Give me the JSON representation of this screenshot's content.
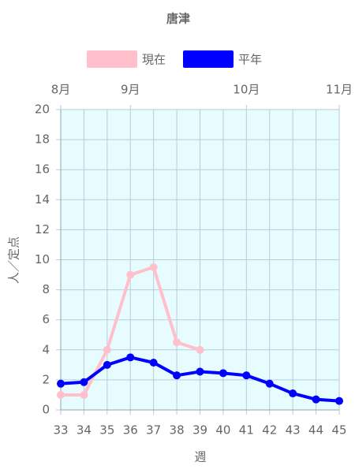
{
  "chart_data": {
    "type": "line",
    "title": "唐津",
    "x_label": "週",
    "y_label": "人／定点",
    "x": [
      33,
      34,
      35,
      36,
      37,
      38,
      39,
      40,
      41,
      42,
      43,
      44,
      45
    ],
    "series": [
      {
        "name": "現在",
        "color": "#ffc0cb",
        "values": [
          1.0,
          1.0,
          4.0,
          9.0,
          9.5,
          4.5,
          4.0,
          null,
          null,
          null,
          null,
          null,
          null
        ]
      },
      {
        "name": "平年",
        "color": "#0000ff",
        "values": [
          1.75,
          1.85,
          3.0,
          3.5,
          3.15,
          2.3,
          2.55,
          2.45,
          2.3,
          1.75,
          1.1,
          0.7,
          0.6
        ]
      }
    ],
    "xlim": [
      33,
      45
    ],
    "xticks": [
      33,
      34,
      35,
      36,
      37,
      38,
      39,
      40,
      41,
      42,
      43,
      44,
      45
    ],
    "top_ticks": [
      {
        "value": 33,
        "label": "8月"
      },
      {
        "value": 36,
        "label": "9月"
      },
      {
        "value": 41,
        "label": "10月"
      },
      {
        "value": 45,
        "label": "11月"
      }
    ],
    "ylim": [
      0,
      20
    ],
    "yticks": [
      0,
      2,
      4,
      6,
      8,
      10,
      12,
      14,
      16,
      18,
      20
    ],
    "grid": true,
    "background": "#e6fcff"
  }
}
